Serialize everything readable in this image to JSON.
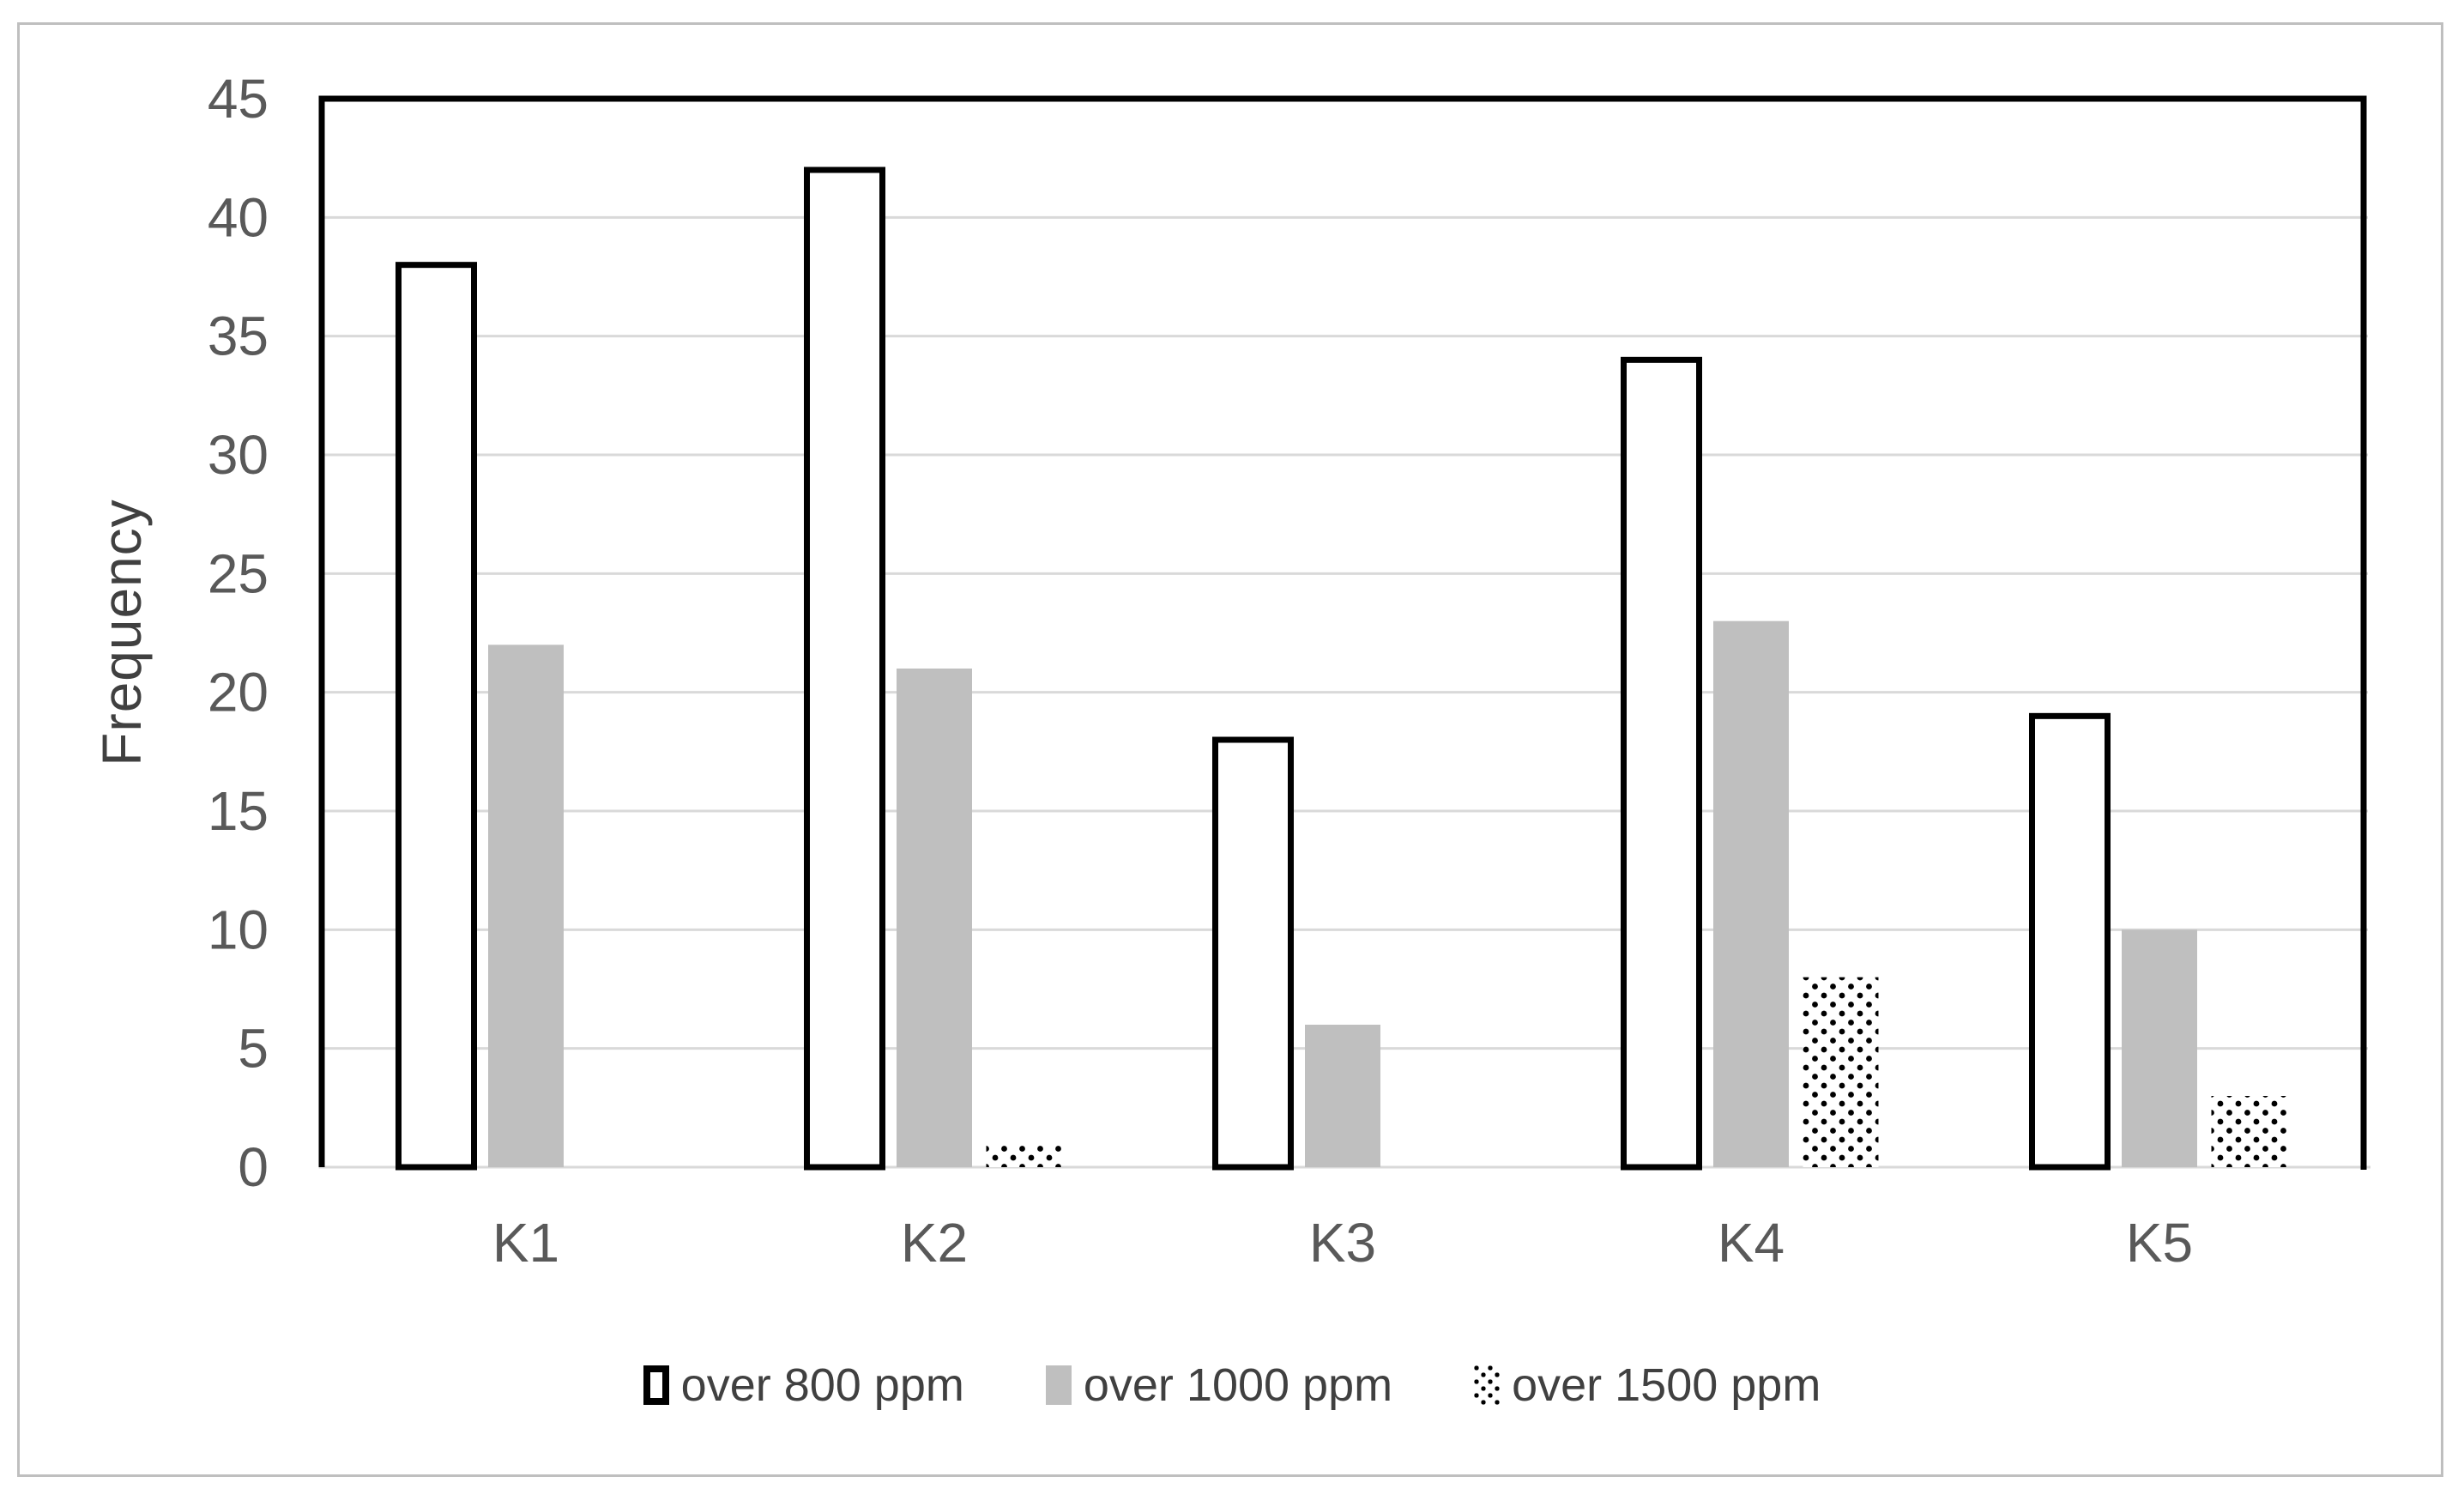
{
  "chart_data": {
    "type": "bar",
    "title": "",
    "categories": [
      "K1",
      "K2",
      "K3",
      "K4",
      "K5"
    ],
    "series": [
      {
        "name": "over 800 ppm",
        "style": "outline",
        "values": [
          38,
          42,
          18,
          34,
          19
        ]
      },
      {
        "name": "over 1000 ppm",
        "style": "solid",
        "values": [
          22,
          21,
          6,
          23,
          10
        ]
      },
      {
        "name": "over 1500 ppm",
        "style": "dotted",
        "values": [
          0,
          1,
          0,
          8,
          3
        ]
      }
    ],
    "xlabel": "",
    "ylabel": "Frequency",
    "ylim": [
      0,
      45
    ],
    "yticks": [
      0,
      5,
      10,
      15,
      20,
      25,
      30,
      35,
      40,
      45
    ],
    "grid": "horizontal",
    "legend_position": "bottom"
  },
  "colors": {
    "bar_fill_gray": "#bfbfbf",
    "bar_outline": "#000000",
    "bar_fill_white": "#ffffff",
    "dot_pattern": "#000000",
    "gridline": "#d9d9d9",
    "bottom_axis_line": "#d9d9d9",
    "plot_frame": "#000000",
    "tick_label_text": "#595959",
    "category_label_text": "#595959",
    "axis_title_text": "#404040",
    "legend_text": "#404040",
    "outer_border": "#bfbfbf",
    "background": "#ffffff"
  }
}
